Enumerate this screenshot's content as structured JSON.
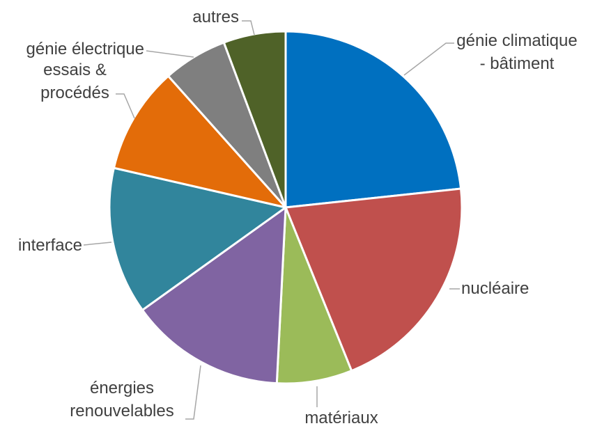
{
  "chart_data": {
    "type": "pie",
    "categories": [
      "génie climatique\n- bâtiment",
      "nucléaire",
      "matériaux",
      "énergies\nrenouvelables",
      "interface",
      "essais &\nprocédés",
      "génie électrique",
      "autres"
    ],
    "values": [
      23.3,
      20.6,
      6.9,
      14.3,
      13.5,
      9.8,
      5.9,
      5.7
    ],
    "colors": [
      "#0070c0",
      "#c0504d",
      "#9bbb59",
      "#8064a2",
      "#31859c",
      "#e36c09",
      "#7f7f7f",
      "#4f6228"
    ]
  }
}
